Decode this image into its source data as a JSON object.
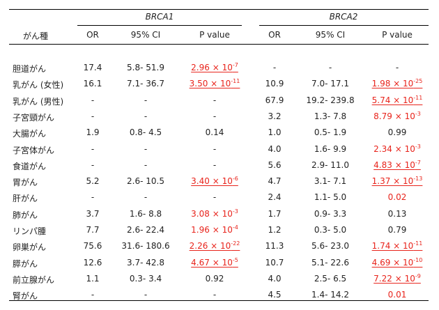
{
  "header": {
    "gene1": "BRCA1",
    "gene2": "BRCA2",
    "cancer_col": "がん種",
    "or": "OR",
    "ci": "95% CI",
    "pvalue": "P value"
  },
  "rows": [
    {
      "cancer": "胆道がん",
      "b1": {
        "or": "17.4",
        "ci": "5.8- 51.9",
        "p": "2.96 × 10",
        "exp": "-7",
        "red": true,
        "ul": true
      },
      "b2": {
        "or": "-",
        "ci": "-",
        "p": "-",
        "exp": "",
        "red": false,
        "ul": false
      }
    },
    {
      "cancer": "乳がん (女性)",
      "b1": {
        "or": "16.1",
        "ci": "7.1- 36.7",
        "p": "3.50 × 10",
        "exp": "-11",
        "red": true,
        "ul": true
      },
      "b2": {
        "or": "10.9",
        "ci": "7.0- 17.1",
        "p": "1.98 × 10",
        "exp": "-25",
        "red": true,
        "ul": true
      }
    },
    {
      "cancer": "乳がん (男性)",
      "b1": {
        "or": "-",
        "ci": "-",
        "p": "-",
        "exp": "",
        "red": false,
        "ul": false
      },
      "b2": {
        "or": "67.9",
        "ci": "19.2- 239.8",
        "p": "5.74 × 10",
        "exp": "-11",
        "red": true,
        "ul": true
      }
    },
    {
      "cancer": "子宮頸がん",
      "b1": {
        "or": "-",
        "ci": "-",
        "p": "-",
        "exp": "",
        "red": false,
        "ul": false
      },
      "b2": {
        "or": "3.2",
        "ci": "1.3- 7.8",
        "p": "8.79 × 10",
        "exp": "-3",
        "red": true,
        "ul": false
      }
    },
    {
      "cancer": "大腸がん",
      "b1": {
        "or": "1.9",
        "ci": "0.8- 4.5",
        "p": "0.14",
        "exp": "",
        "red": false,
        "ul": false
      },
      "b2": {
        "or": "1.0",
        "ci": "0.5- 1.9",
        "p": "0.99",
        "exp": "",
        "red": false,
        "ul": false
      }
    },
    {
      "cancer": "子宮体がん",
      "b1": {
        "or": "-",
        "ci": "-",
        "p": "-",
        "exp": "",
        "red": false,
        "ul": false
      },
      "b2": {
        "or": "4.0",
        "ci": "1.6- 9.9",
        "p": "2.34 × 10",
        "exp": "-3",
        "red": true,
        "ul": false
      }
    },
    {
      "cancer": "食道がん",
      "b1": {
        "or": "-",
        "ci": "-",
        "p": "-",
        "exp": "",
        "red": false,
        "ul": false
      },
      "b2": {
        "or": "5.6",
        "ci": "2.9- 11.0",
        "p": "4.83 × 10",
        "exp": "-7",
        "red": true,
        "ul": true
      }
    },
    {
      "cancer": "胃がん",
      "b1": {
        "or": "5.2",
        "ci": "2.6- 10.5",
        "p": "3.40 × 10",
        "exp": "-6",
        "red": true,
        "ul": true
      },
      "b2": {
        "or": "4.7",
        "ci": "3.1- 7.1",
        "p": "1.37 × 10",
        "exp": "-13",
        "red": true,
        "ul": true
      }
    },
    {
      "cancer": "肝がん",
      "b1": {
        "or": "-",
        "ci": "-",
        "p": "-",
        "exp": "",
        "red": false,
        "ul": false
      },
      "b2": {
        "or": "2.4",
        "ci": "1.1- 5.0",
        "p": "0.02",
        "exp": "",
        "red": true,
        "ul": false
      }
    },
    {
      "cancer": "肺がん",
      "b1": {
        "or": "3.7",
        "ci": "1.6- 8.8",
        "p": "3.08 × 10",
        "exp": "-3",
        "red": true,
        "ul": false
      },
      "b2": {
        "or": "1.7",
        "ci": "0.9- 3.3",
        "p": "0.13",
        "exp": "",
        "red": false,
        "ul": false
      }
    },
    {
      "cancer": "リンパ腫",
      "b1": {
        "or": "7.7",
        "ci": "2.6- 22.4",
        "p": "1.96 × 10",
        "exp": "-4",
        "red": true,
        "ul": false
      },
      "b2": {
        "or": "1.2",
        "ci": "0.3- 5.0",
        "p": "0.79",
        "exp": "",
        "red": false,
        "ul": false
      }
    },
    {
      "cancer": "卵巣がん",
      "b1": {
        "or": "75.6",
        "ci": "31.6- 180.6",
        "p": "2.26 × 10",
        "exp": "-22",
        "red": true,
        "ul": true
      },
      "b2": {
        "or": "11.3",
        "ci": "5.6- 23.0",
        "p": "1.74 × 10",
        "exp": "-11",
        "red": true,
        "ul": true
      }
    },
    {
      "cancer": "膵がん",
      "b1": {
        "or": "12.6",
        "ci": "3.7- 42.8",
        "p": "4.67 × 10",
        "exp": "-5",
        "red": true,
        "ul": true
      },
      "b2": {
        "or": "10.7",
        "ci": "5.1- 22.6",
        "p": "4.69 × 10",
        "exp": "-10",
        "red": true,
        "ul": true
      }
    },
    {
      "cancer": "前立腺がん",
      "b1": {
        "or": "1.1",
        "ci": "0.3- 3.4",
        "p": "0.92",
        "exp": "",
        "red": false,
        "ul": false
      },
      "b2": {
        "or": "4.0",
        "ci": "2.5- 6.5",
        "p": "7.22 × 10",
        "exp": "-9",
        "red": true,
        "ul": true
      }
    },
    {
      "cancer": "腎がん",
      "b1": {
        "or": "-",
        "ci": "-",
        "p": "-",
        "exp": "",
        "red": false,
        "ul": false
      },
      "b2": {
        "or": "4.5",
        "ci": "1.4- 14.2",
        "p": "0.01",
        "exp": "",
        "red": true,
        "ul": false
      }
    }
  ]
}
